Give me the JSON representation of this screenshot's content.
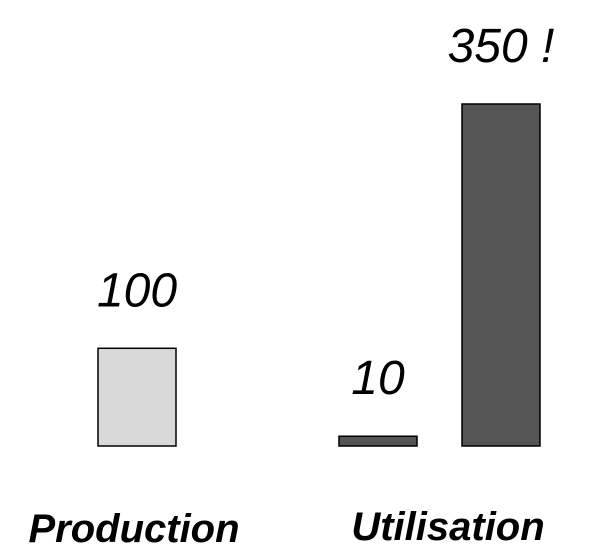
{
  "chart_data": {
    "type": "bar",
    "groups": [
      {
        "label": "Production",
        "bars": [
          {
            "value": 100,
            "label": "100",
            "color": "#d9d9d9"
          }
        ]
      },
      {
        "label": "Utilisation",
        "bars": [
          {
            "value": 10,
            "label": "10",
            "color": "#555555"
          },
          {
            "value": 350,
            "label": "350 !",
            "color": "#555555"
          }
        ]
      }
    ],
    "ylim": [
      0,
      350
    ],
    "grid": false,
    "title": "",
    "xlabel": "",
    "ylabel": ""
  }
}
